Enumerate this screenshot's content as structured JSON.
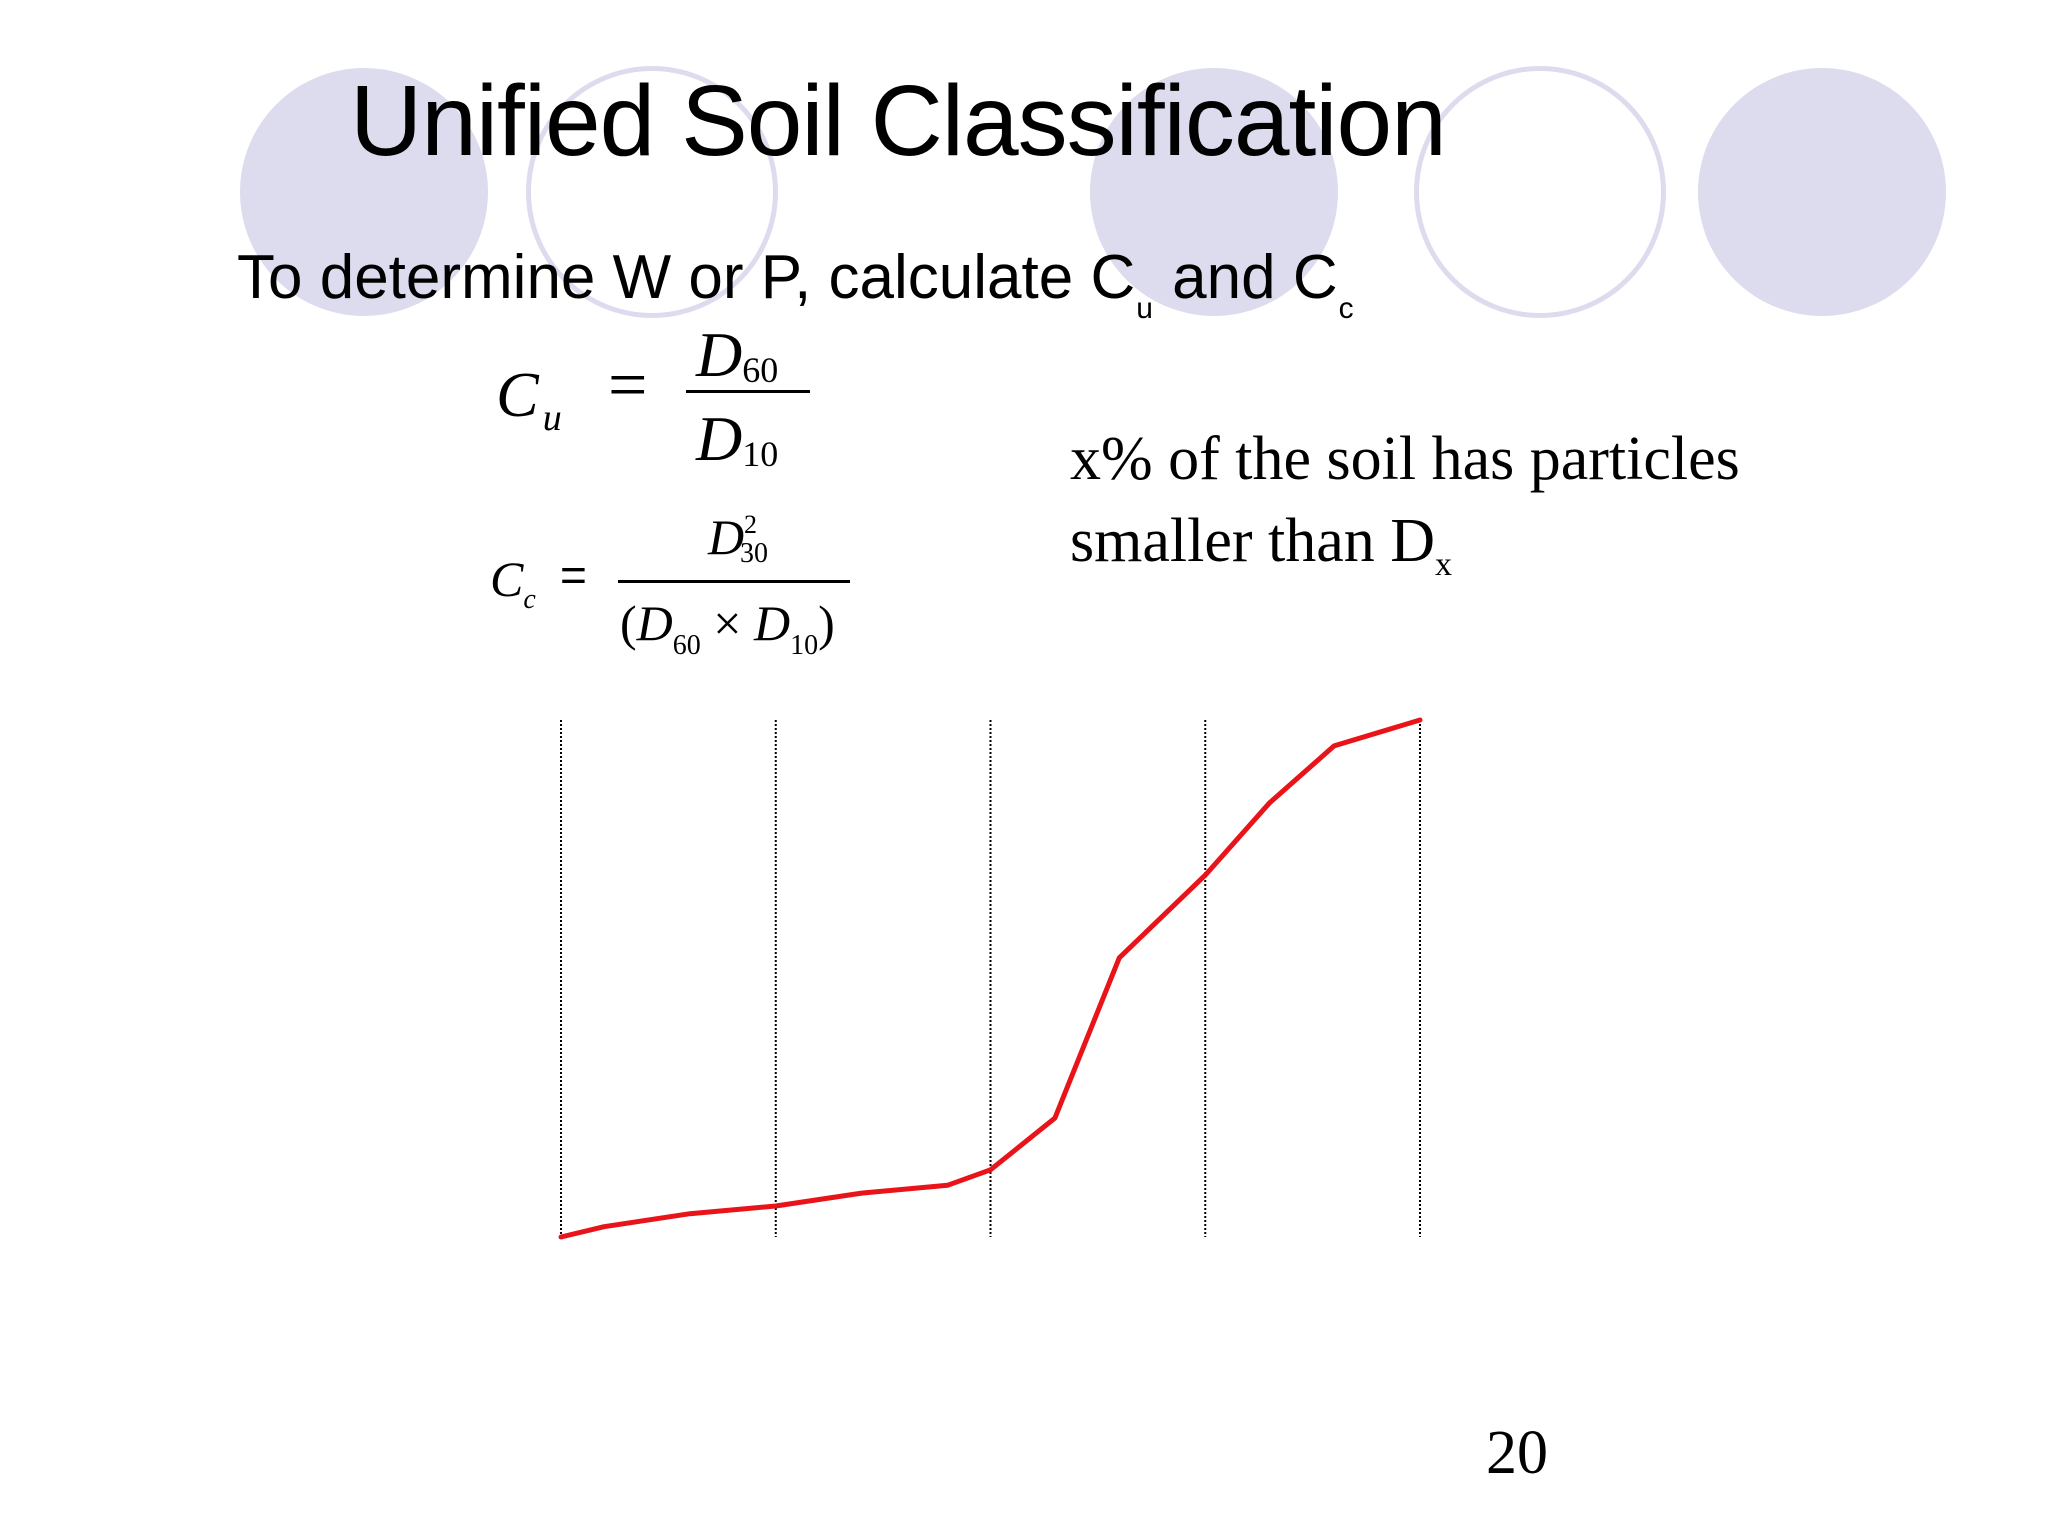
{
  "slide": {
    "title": "Unified Soil Classification",
    "subtitle": {
      "text_before": "To determine W or P, calculate C",
      "sub_u": "u",
      "text_middle": " and C",
      "sub_c": "c"
    },
    "equation_cu": {
      "lhs": "C",
      "lhs_sub": "u",
      "equals": "=",
      "numerator": "D",
      "numerator_sub": "60",
      "denominator": "D",
      "denominator_sub": "10"
    },
    "equation_cc": {
      "lhs": "C",
      "lhs_sub": "c",
      "equals": "=",
      "numerator": "D",
      "numerator_sup": "2",
      "numerator_sub": "30",
      "den_open": "(",
      "den_d1": "D",
      "den_d1_sub": "60",
      "den_times": " × ",
      "den_d2": "D",
      "den_d2_sub": "10",
      "den_close": ")"
    },
    "note": {
      "line1": "x% of the soil has particles",
      "line2": "smaller than D",
      "line2_sub": "x"
    },
    "page_number": "20",
    "colors": {
      "decor_circle": "#dcdcee",
      "curve": "#e8141a",
      "gridline": "#000000"
    }
  },
  "chart_data": {
    "type": "line",
    "title": "",
    "xlabel": "",
    "ylabel": "",
    "xlim": [
      0,
      4
    ],
    "ylim": [
      0,
      100
    ],
    "grid": "vertical dotted lines at x = 0, 1, 2, 3, 4",
    "series": [
      {
        "values_x": [
          0,
          0.2,
          0.6,
          1.0,
          1.4,
          1.8,
          2.0,
          2.3,
          2.6,
          3.0,
          3.3,
          3.6,
          4.0
        ],
        "values_y": [
          0,
          2,
          4.5,
          6,
          8.5,
          10,
          13,
          23,
          54,
          70,
          84,
          95,
          100
        ]
      }
    ]
  }
}
